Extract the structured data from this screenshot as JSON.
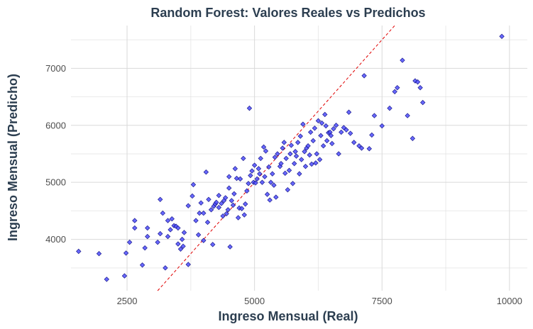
{
  "chart_data": {
    "type": "scatter",
    "title": "Random Forest: Valores Reales vs Predichos",
    "xlabel": "Ingreso Mensual (Real)",
    "ylabel": "Ingreso Mensual (Predicho)",
    "xlim": [
      1400,
      10350
    ],
    "ylim": [
      3100,
      7750
    ],
    "xticks": [
      2500,
      5000,
      7500,
      10000
    ],
    "yticks": [
      4000,
      5000,
      6000,
      7000
    ],
    "reference_line": {
      "from": 3100,
      "to": 7750,
      "style": "dashed",
      "color": "#e00000"
    },
    "point_color": "#4d4dff",
    "grid": true,
    "points": [
      [
        1550,
        3790
      ],
      [
        1950,
        3750
      ],
      [
        2100,
        3300
      ],
      [
        2450,
        3360
      ],
      [
        2480,
        3760
      ],
      [
        2550,
        3950
      ],
      [
        2650,
        4200
      ],
      [
        2650,
        4330
      ],
      [
        2800,
        3550
      ],
      [
        2850,
        3850
      ],
      [
        2900,
        4050
      ],
      [
        2900,
        4200
      ],
      [
        3100,
        3950
      ],
      [
        3150,
        4100
      ],
      [
        3150,
        4700
      ],
      [
        3200,
        4460
      ],
      [
        3250,
        3500
      ],
      [
        3300,
        4050
      ],
      [
        3300,
        4330
      ],
      [
        3350,
        4170
      ],
      [
        3380,
        4360
      ],
      [
        3420,
        4240
      ],
      [
        3460,
        4230
      ],
      [
        3500,
        4200
      ],
      [
        3500,
        3920
      ],
      [
        3550,
        3830
      ],
      [
        3580,
        4000
      ],
      [
        3600,
        3880
      ],
      [
        3620,
        4120
      ],
      [
        3700,
        4590
      ],
      [
        3700,
        3560
      ],
      [
        3780,
        4760
      ],
      [
        3800,
        4960
      ],
      [
        3850,
        4330
      ],
      [
        3900,
        4080
      ],
      [
        3920,
        4460
      ],
      [
        3950,
        4640
      ],
      [
        4000,
        3980
      ],
      [
        4000,
        4460
      ],
      [
        4050,
        5180
      ],
      [
        4080,
        4300
      ],
      [
        4100,
        4700
      ],
      [
        4150,
        4520
      ],
      [
        4180,
        3910
      ],
      [
        4200,
        4580
      ],
      [
        4230,
        4620
      ],
      [
        4250,
        4650
      ],
      [
        4300,
        4560
      ],
      [
        4300,
        4770
      ],
      [
        4350,
        4630
      ],
      [
        4380,
        4410
      ],
      [
        4400,
        4680
      ],
      [
        4430,
        4730
      ],
      [
        4450,
        4450
      ],
      [
        4480,
        4520
      ],
      [
        4500,
        4900
      ],
      [
        4500,
        5100
      ],
      [
        4520,
        3870
      ],
      [
        4550,
        4680
      ],
      [
        4580,
        4600
      ],
      [
        4600,
        4800
      ],
      [
        4620,
        5240
      ],
      [
        4650,
        5070
      ],
      [
        4680,
        4380
      ],
      [
        4700,
        4550
      ],
      [
        4720,
        5060
      ],
      [
        4750,
        4540
      ],
      [
        4780,
        5420
      ],
      [
        4800,
        4430
      ],
      [
        4820,
        4620
      ],
      [
        4850,
        4850
      ],
      [
        4880,
        4980
      ],
      [
        4900,
        6300
      ],
      [
        4920,
        5120
      ],
      [
        4950,
        5200
      ],
      [
        4980,
        5000
      ],
      [
        5000,
        5300
      ],
      [
        5020,
        4990
      ],
      [
        5050,
        5060
      ],
      [
        5080,
        5240
      ],
      [
        5100,
        5150
      ],
      [
        5120,
        5420
      ],
      [
        5150,
        5000
      ],
      [
        5180,
        5620
      ],
      [
        5200,
        5100
      ],
      [
        5220,
        5550
      ],
      [
        5250,
        4790
      ],
      [
        5280,
        5270
      ],
      [
        5300,
        4690
      ],
      [
        5320,
        5000
      ],
      [
        5350,
        5150
      ],
      [
        5380,
        4950
      ],
      [
        5400,
        5440
      ],
      [
        5420,
        4740
      ],
      [
        5450,
        5500
      ],
      [
        5500,
        5280
      ],
      [
        5520,
        5330
      ],
      [
        5550,
        5600
      ],
      [
        5580,
        5700
      ],
      [
        5600,
        5160
      ],
      [
        5620,
        5420
      ],
      [
        5650,
        4870
      ],
      [
        5680,
        5210
      ],
      [
        5700,
        5500
      ],
      [
        5720,
        5650
      ],
      [
        5750,
        4980
      ],
      [
        5780,
        5330
      ],
      [
        5800,
        5540
      ],
      [
        5820,
        5460
      ],
      [
        5850,
        5700
      ],
      [
        5880,
        5150
      ],
      [
        5900,
        5810
      ],
      [
        5920,
        5400
      ],
      [
        5950,
        6020
      ],
      [
        5980,
        5540
      ],
      [
        6000,
        5280
      ],
      [
        6020,
        5600
      ],
      [
        6050,
        5640
      ],
      [
        6080,
        5480
      ],
      [
        6100,
        5880
      ],
      [
        6120,
        5320
      ],
      [
        6150,
        5730
      ],
      [
        6180,
        5950
      ],
      [
        6200,
        5340
      ],
      [
        6220,
        5500
      ],
      [
        6250,
        6080
      ],
      [
        6280,
        5400
      ],
      [
        6300,
        5820
      ],
      [
        6320,
        6040
      ],
      [
        6350,
        5640
      ],
      [
        6380,
        6190
      ],
      [
        6400,
        5990
      ],
      [
        6420,
        5730
      ],
      [
        6450,
        5870
      ],
      [
        6480,
        5880
      ],
      [
        6500,
        5820
      ],
      [
        6520,
        5680
      ],
      [
        6550,
        5940
      ],
      [
        6600,
        6000
      ],
      [
        6650,
        5500
      ],
      [
        6700,
        5880
      ],
      [
        6750,
        5960
      ],
      [
        6800,
        5920
      ],
      [
        6850,
        6230
      ],
      [
        6880,
        5860
      ],
      [
        6950,
        5700
      ],
      [
        7050,
        5640
      ],
      [
        7100,
        5600
      ],
      [
        7150,
        6870
      ],
      [
        7250,
        5590
      ],
      [
        7300,
        5830
      ],
      [
        7350,
        6170
      ],
      [
        7500,
        5990
      ],
      [
        7650,
        6300
      ],
      [
        7750,
        6590
      ],
      [
        7800,
        6660
      ],
      [
        7900,
        7140
      ],
      [
        8000,
        6170
      ],
      [
        8100,
        5770
      ],
      [
        8150,
        6780
      ],
      [
        8200,
        6760
      ],
      [
        8250,
        6660
      ],
      [
        8300,
        6400
      ],
      [
        9850,
        7560
      ]
    ]
  }
}
